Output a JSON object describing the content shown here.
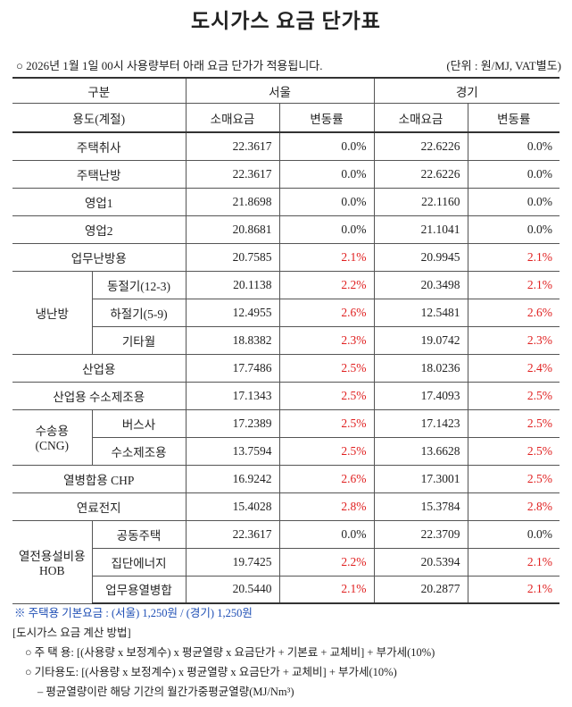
{
  "header": {
    "title": "도시가스 요금 단가표",
    "notice": "○ 2026년 1월 1일 00시 사용량부터 아래 요금 단가가 적용됩니다.",
    "unit": "(단위 : 원/MJ, VAT별도)"
  },
  "table": {
    "header": [
      "구분",
      "서울",
      "경기"
    ],
    "subheader": [
      "용도(계절)",
      "소매요금",
      "변동률",
      "소매요금",
      "변동률"
    ],
    "rows": [
      {
        "label": "주택취사",
        "seoul": [
          "22.3617",
          "0.0%",
          "#222"
        ],
        "gyeonggi": [
          "22.6226",
          "0.0%",
          "#222"
        ]
      },
      {
        "label": "주택난방",
        "seoul": [
          "22.3617",
          "0.0%",
          "#222"
        ],
        "gyeonggi": [
          "22.6226",
          "0.0%",
          "#222"
        ]
      },
      {
        "label": "영업1",
        "seoul": [
          "21.8698",
          "0.0%",
          "#222"
        ],
        "gyeonggi": [
          "22.1160",
          "0.0%",
          "#222"
        ]
      },
      {
        "label": "영업2",
        "seoul": [
          "20.8681",
          "0.0%",
          "#222"
        ],
        "gyeonggi": [
          "21.1041",
          "0.0%",
          "#222"
        ]
      },
      {
        "label": "업무난방용",
        "seoul": [
          "20.7585",
          "2.1%",
          "#e02020"
        ],
        "gyeonggi": [
          "20.9945",
          "2.1%",
          "#e02020"
        ]
      },
      {
        "group": [
          "냉난방"
        ],
        "items": [
          {
            "label": "동절기(12-3)",
            "seoul": [
              "20.1138",
              "2.2%",
              "#e02020"
            ],
            "gyeonggi": [
              "20.3498",
              "2.1%",
              "#e02020"
            ]
          },
          {
            "label": "하절기(5-9)",
            "seoul": [
              "12.4955",
              "2.6%",
              "#e02020"
            ],
            "gyeonggi": [
              "12.5481",
              "2.6%",
              "#e02020"
            ]
          },
          {
            "label": "기타월",
            "seoul": [
              "18.8382",
              "2.3%",
              "#e02020"
            ],
            "gyeonggi": [
              "19.0742",
              "2.3%",
              "#e02020"
            ]
          }
        ]
      },
      {
        "label": "산업용",
        "seoul": [
          "17.7486",
          "2.5%",
          "#e02020"
        ],
        "gyeonggi": [
          "18.0236",
          "2.4%",
          "#e02020"
        ]
      },
      {
        "label": "산업용 수소제조용",
        "seoul": [
          "17.1343",
          "2.5%",
          "#e02020"
        ],
        "gyeonggi": [
          "17.4093",
          "2.5%",
          "#e02020"
        ]
      },
      {
        "group": [
          "수송용",
          "(CNG)"
        ],
        "items": [
          {
            "label": "버스사",
            "seoul": [
              "17.2389",
              "2.5%",
              "#e02020"
            ],
            "gyeonggi": [
              "17.1423",
              "2.5%",
              "#e02020"
            ]
          },
          {
            "label": "수소제조용",
            "seoul": [
              "13.7594",
              "2.5%",
              "#e02020"
            ],
            "gyeonggi": [
              "13.6628",
              "2.5%",
              "#e02020"
            ]
          }
        ]
      },
      {
        "label": "열병합용 CHP",
        "seoul": [
          "16.9242",
          "2.6%",
          "#e02020"
        ],
        "gyeonggi": [
          "17.3001",
          "2.5%",
          "#e02020"
        ]
      },
      {
        "label": "연료전지",
        "seoul": [
          "15.4028",
          "2.8%",
          "#e02020"
        ],
        "gyeonggi": [
          "15.3784",
          "2.8%",
          "#e02020"
        ]
      },
      {
        "group": [
          "열전용설비용",
          "HOB"
        ],
        "items": [
          {
            "label": "공동주택",
            "seoul": [
              "22.3617",
              "0.0%",
              "#222"
            ],
            "gyeonggi": [
              "22.3709",
              "0.0%",
              "#222"
            ]
          },
          {
            "label": "집단에너지",
            "seoul": [
              "19.7425",
              "2.2%",
              "#e02020"
            ],
            "gyeonggi": [
              "20.5394",
              "2.1%",
              "#e02020"
            ]
          },
          {
            "label": "업무용열병합",
            "seoul": [
              "20.5440",
              "2.1%",
              "#e02020"
            ],
            "gyeonggi": [
              "20.2877",
              "2.1%",
              "#e02020"
            ]
          }
        ]
      }
    ]
  },
  "footnote": {
    "text": "※ 주택용 기본요금 : (서울) 1,250원 / (경기) 1,250원",
    "color": "#1f4fb5"
  },
  "method": {
    "title": "[도시가스 요금 계산 방법]",
    "lines": [
      "○ 주 택 용: [(사용량 x 보정계수) x 평균열량 x 요금단가 + 기본료 + 교체비] + 부가세(10%)",
      "○ 기타용도: [(사용량 x 보정계수) x 평균열량 x 요금단가 + 교체비] + 부가세(10%)",
      "– 평균열량이란 해당 기간의 월간가중평균열량(MJ/Nm³)"
    ]
  }
}
